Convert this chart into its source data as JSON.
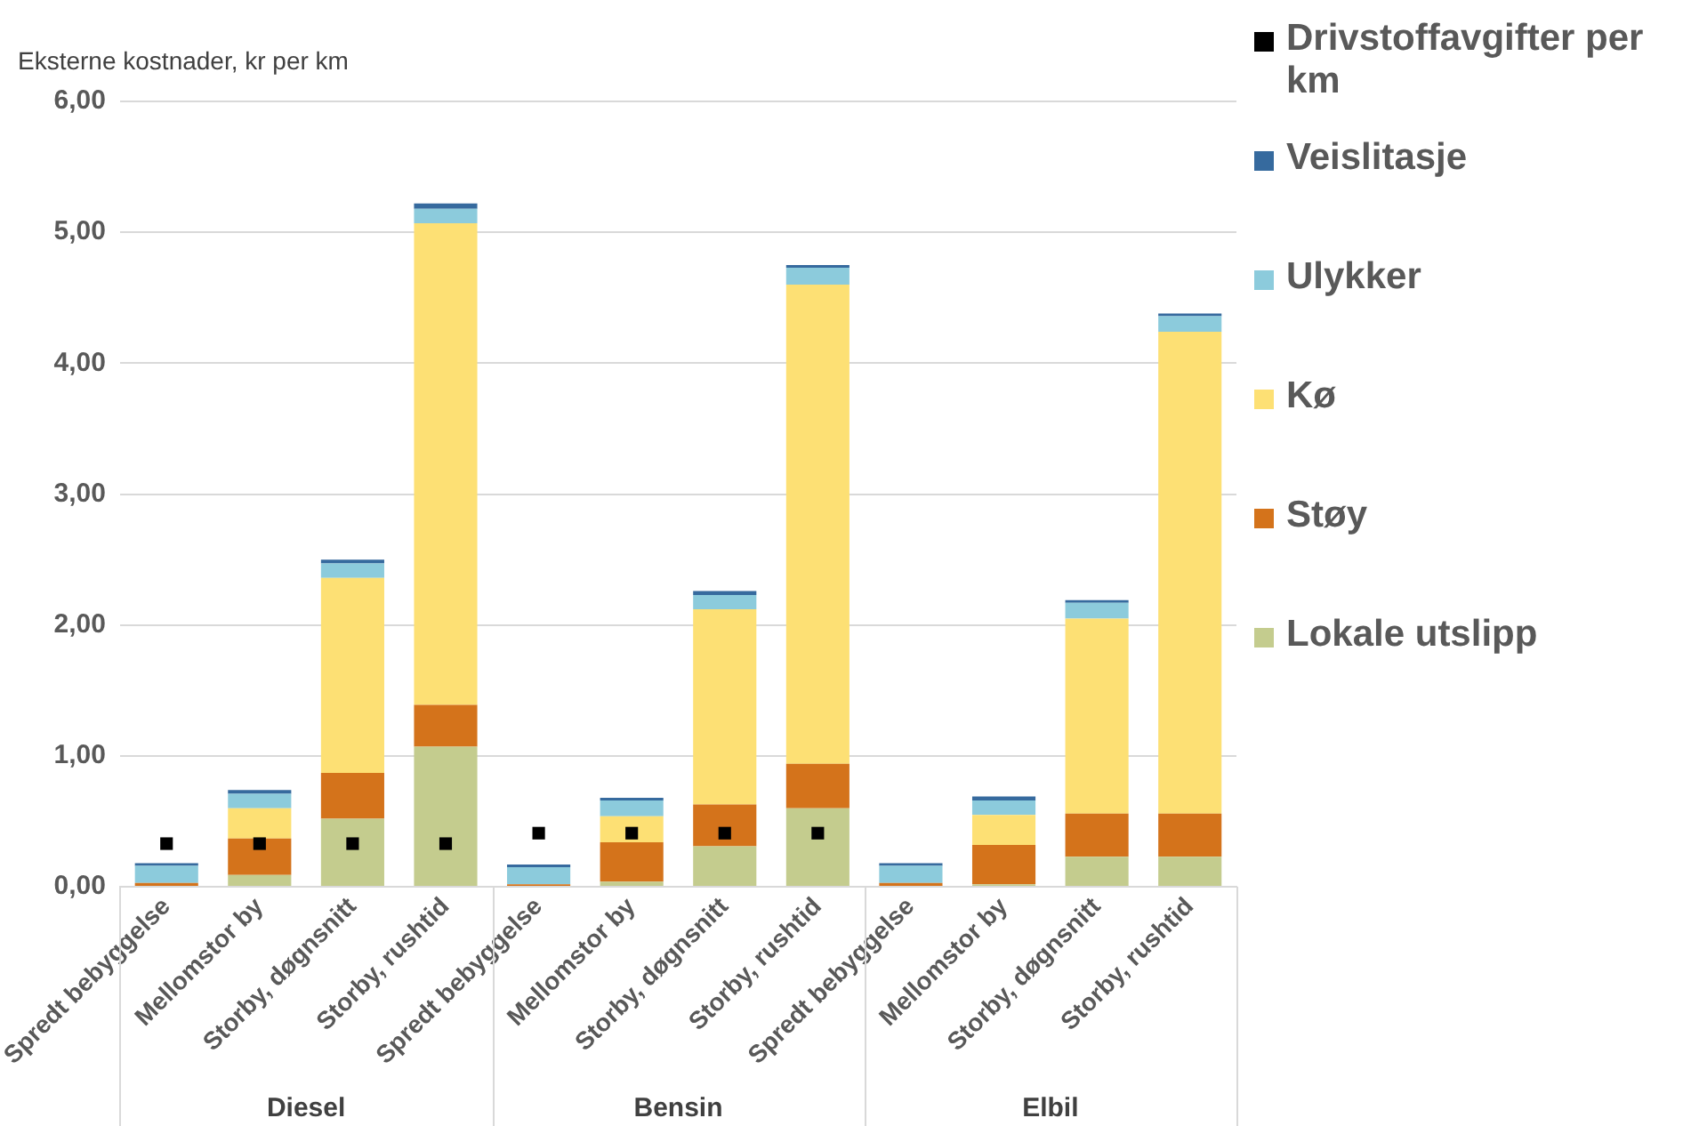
{
  "chart_data": {
    "type": "bar",
    "stacked": true,
    "ylabel": "Eksterne kostnader, kr per km",
    "categories": [
      "Spredt bebyggelse",
      "Mellomstor by",
      "Storby, døgnsnitt",
      "Storby, rushtid",
      "Spredt bebyggelse",
      "Mellomstor by",
      "Storby, døgnsnitt",
      "Storby, rushtid",
      "Spredt bebyggelse",
      "Mellomstor by",
      "Storby, døgnsnitt",
      "Storby, rushtid"
    ],
    "annotations": [
      "Diesel",
      "Bensin",
      "Elbil"
    ],
    "series": [
      {
        "name": "Lokale utslipp",
        "color": "#c4cc8e",
        "values": [
          null,
          0.09,
          0.52,
          1.07,
          null,
          0.04,
          0.31,
          0.6,
          0,
          0.02,
          0.23,
          0.23
        ]
      },
      {
        "name": "Støy",
        "color": "#d4731b",
        "values": [
          0.03,
          0.28,
          0.35,
          0.32,
          0.02,
          0.3,
          0.32,
          0.34,
          0.03,
          0.3,
          0.33,
          0.33
        ]
      },
      {
        "name": "Kø",
        "color": "#fde074",
        "values": [
          0,
          0.23,
          1.49,
          3.68,
          0,
          0.2,
          1.49,
          3.66,
          0,
          0.23,
          1.49,
          3.68
        ]
      },
      {
        "name": "Ulykker",
        "color": "#8ccbdc",
        "values": [
          0.13,
          0.11,
          0.11,
          0.11,
          0.13,
          0.12,
          0.11,
          0.13,
          0.13,
          0.11,
          0.12,
          0.12
        ]
      },
      {
        "name": "Veislitasje",
        "color": "#366a9e",
        "values": [
          0.02,
          0.03,
          0.03,
          0.04,
          0.02,
          0.02,
          0.03,
          0.02,
          0.02,
          0.03,
          0.02,
          0.02
        ]
      },
      {
        "name": "Drivstoffavgifter per km",
        "type": "scatter",
        "marker": "square",
        "color": "#000000",
        "values": [
          0.33,
          0.33,
          0.33,
          0.33,
          0.41,
          0.41,
          0.41,
          0.41,
          null,
          null,
          null,
          null
        ]
      }
    ],
    "ylim": [
      0,
      6
    ],
    "yticks": [
      {
        "value": 0,
        "label": "0,00"
      },
      {
        "value": 1,
        "label": "1,00"
      },
      {
        "value": 2,
        "label": "2,00"
      },
      {
        "value": 3,
        "label": "3,00"
      },
      {
        "value": 4,
        "label": "4,00"
      },
      {
        "value": 5,
        "label": "5,00"
      },
      {
        "value": 6,
        "label": "6,00"
      }
    ],
    "grid": "y",
    "legend": "right"
  }
}
